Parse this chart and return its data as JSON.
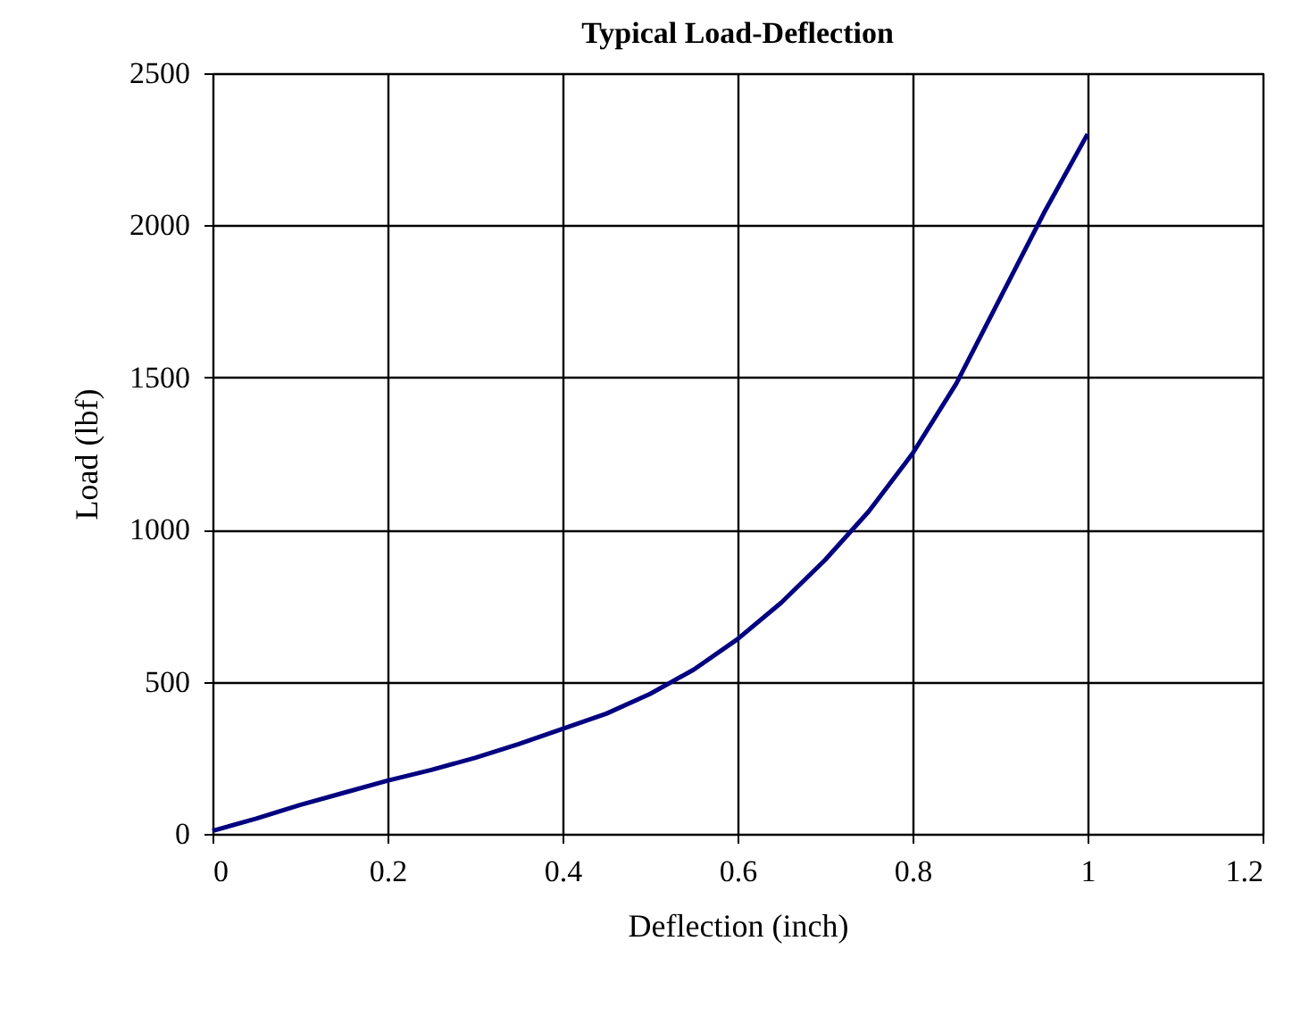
{
  "chart_data": {
    "type": "line",
    "title": "Typical Load-Deflection",
    "xlabel": "Deflection (inch)",
    "ylabel": "Load (lbf)",
    "x": [
      0,
      0.05,
      0.1,
      0.15,
      0.2,
      0.25,
      0.3,
      0.35,
      0.4,
      0.45,
      0.5,
      0.55,
      0.6,
      0.65,
      0.7,
      0.75,
      0.8,
      0.85,
      0.9,
      0.95,
      1.0
    ],
    "series": [
      {
        "color": "#000080",
        "values": [
          10,
          50,
          95,
          135,
          175,
          210,
          250,
          295,
          345,
          395,
          460,
          540,
          640,
          760,
          900,
          1060,
          1250,
          1480,
          1760,
          2040,
          2300
        ]
      }
    ],
    "xlim": [
      0,
      1.2
    ],
    "xticks": [
      0,
      0.2,
      0.4,
      0.6,
      0.8,
      1,
      1.2
    ],
    "ylim": [
      0,
      2500
    ],
    "yticks": [
      0,
      500,
      1000,
      1500,
      2000,
      2500
    ],
    "grid": true,
    "line_style": "solid"
  }
}
